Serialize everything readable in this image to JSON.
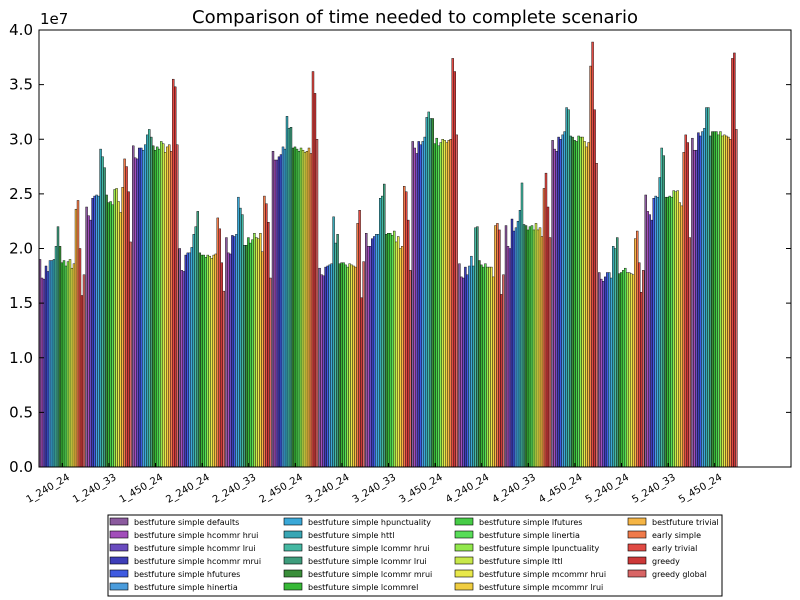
{
  "chart_data": {
    "type": "bar",
    "title": "Comparison of time needed to complete scenario",
    "xlabel": "",
    "ylabel": "",
    "ylim": [
      0,
      40000000
    ],
    "y_offset_label": "1e7",
    "y_ticks": [
      "0.0",
      "0.5",
      "1.0",
      "1.5",
      "2.0",
      "2.5",
      "3.0",
      "3.5",
      "4.0"
    ],
    "grid": false,
    "legend_position": "bottom",
    "categories": [
      "1_240_24",
      "1_240_33",
      "1_450_24",
      "2_240_24",
      "2_240_33",
      "2_450_24",
      "3_240_24",
      "3_240_33",
      "3_450_24",
      "4_240_24",
      "4_240_33",
      "4_450_24",
      "5_240_24",
      "5_240_33",
      "5_450_24"
    ],
    "series": [
      {
        "name": "bestfuture simple defaults",
        "color": "#8b5a9e",
        "values": [
          19000000,
          23800000,
          29400000,
          20000000,
          21000000,
          28900000,
          18200000,
          21400000,
          29800000,
          18600000,
          22100000,
          29900000,
          17800000,
          24900000,
          30100000
        ]
      },
      {
        "name": "bestfuture simple hcommr hrui",
        "color": "#a24dba",
        "values": [
          17300000,
          23000000,
          28300000,
          18000000,
          19600000,
          28100000,
          17600000,
          20200000,
          29200000,
          17400000,
          20200000,
          29100000,
          17200000,
          23400000,
          29000000
        ]
      },
      {
        "name": "bestfuture simple hcommr lrui",
        "color": "#6a4cbf",
        "values": [
          17200000,
          22600000,
          28200000,
          17900000,
          19500000,
          28100000,
          17500000,
          20200000,
          28700000,
          17300000,
          20000000,
          28900000,
          17000000,
          23100000,
          29000000
        ]
      },
      {
        "name": "bestfuture simple hcommr mrui",
        "color": "#3e3eb8",
        "values": [
          18400000,
          24600000,
          29200000,
          19400000,
          21200000,
          28400000,
          18300000,
          20900000,
          29800000,
          18300000,
          22700000,
          30200000,
          17400000,
          22600000,
          30600000
        ]
      },
      {
        "name": "bestfuture simple hfutures",
        "color": "#3f5be0",
        "values": [
          17900000,
          24800000,
          29200000,
          19600000,
          21100000,
          28600000,
          18400000,
          21100000,
          29500000,
          17600000,
          21600000,
          30000000,
          17800000,
          24600000,
          30300000
        ]
      },
      {
        "name": "bestfuture simple hinertia",
        "color": "#4a9cdc",
        "values": [
          18900000,
          24900000,
          29000000,
          19600000,
          21300000,
          29300000,
          18500000,
          21300000,
          29800000,
          18400000,
          21900000,
          30400000,
          17800000,
          24800000,
          30700000
        ]
      },
      {
        "name": "bestfuture simple hpunctuality",
        "color": "#3aa8d8",
        "values": [
          18900000,
          24800000,
          29500000,
          20100000,
          24700000,
          29100000,
          18600000,
          21300000,
          30200000,
          19300000,
          22500000,
          30700000,
          17300000,
          24700000,
          31000000
        ]
      },
      {
        "name": "bestfuture simple httl",
        "color": "#38a6b4",
        "values": [
          19000000,
          29100000,
          30400000,
          21300000,
          23700000,
          32100000,
          22900000,
          24600000,
          32000000,
          18400000,
          23500000,
          32900000,
          20200000,
          26500000,
          32900000
        ]
      },
      {
        "name": "bestfuture simple lcommr hrui",
        "color": "#45b8a2",
        "values": [
          20200000,
          28400000,
          30900000,
          22000000,
          23100000,
          31000000,
          20500000,
          24800000,
          32500000,
          21900000,
          26000000,
          32700000,
          20000000,
          29200000,
          32900000
        ]
      },
      {
        "name": "bestfuture simple lcommr lrui",
        "color": "#3e9c7c",
        "values": [
          22000000,
          27400000,
          30200000,
          23400000,
          20300000,
          31100000,
          21300000,
          25900000,
          31900000,
          22000000,
          22200000,
          30300000,
          21000000,
          28500000,
          30300000
        ]
      },
      {
        "name": "bestfuture simple lcommr mrui",
        "color": "#3a8e3a",
        "values": [
          20200000,
          24900000,
          29400000,
          19600000,
          20300000,
          29200000,
          18600000,
          21300000,
          31900000,
          18900000,
          22100000,
          30200000,
          17700000,
          24700000,
          30700000
        ]
      },
      {
        "name": "bestfuture simple lcommrel",
        "color": "#37b837",
        "values": [
          18700000,
          24200000,
          29000000,
          19400000,
          21000000,
          29300000,
          18700000,
          21400000,
          29600000,
          18500000,
          21700000,
          29900000,
          17800000,
          24700000,
          30700000
        ]
      },
      {
        "name": "bestfuture simple lfutures",
        "color": "#46cc46",
        "values": [
          18900000,
          24300000,
          29300000,
          19400000,
          20500000,
          29100000,
          18700000,
          21400000,
          30100000,
          18300000,
          22000000,
          29800000,
          18000000,
          24800000,
          30700000
        ]
      },
      {
        "name": "bestfuture simple linertia",
        "color": "#58dd58",
        "values": [
          18400000,
          24000000,
          29100000,
          19200000,
          20800000,
          28900000,
          18500000,
          21200000,
          29400000,
          18600000,
          22100000,
          30300000,
          18200000,
          24700000,
          30400000
        ]
      },
      {
        "name": "bestfuture simple lpunctuality",
        "color": "#92e84c",
        "values": [
          18800000,
          25400000,
          29800000,
          19400000,
          21400000,
          29200000,
          18300000,
          21600000,
          29700000,
          18300000,
          21700000,
          30200000,
          17800000,
          25300000,
          30700000
        ]
      },
      {
        "name": "bestfuture simple lttl",
        "color": "#c8e84a",
        "values": [
          19000000,
          25500000,
          29600000,
          19300000,
          21000000,
          29000000,
          18600000,
          20600000,
          30000000,
          18300000,
          22300000,
          30200000,
          17800000,
          25200000,
          30300000
        ]
      },
      {
        "name": "bestfuture simple mcommr hrui",
        "color": "#e8e84a",
        "values": [
          18200000,
          24300000,
          28800000,
          19100000,
          20900000,
          28800000,
          18500000,
          21100000,
          29900000,
          18300000,
          21700000,
          29800000,
          17700000,
          25300000,
          30400000
        ]
      },
      {
        "name": "bestfuture simple mcommr lrui",
        "color": "#f0cd40",
        "values": [
          18600000,
          23300000,
          29300000,
          19400000,
          21400000,
          28900000,
          18400000,
          20000000,
          29700000,
          17400000,
          21900000,
          29300000,
          17600000,
          24200000,
          30300000
        ]
      },
      {
        "name": "bestfuture trivial",
        "color": "#f5b545",
        "values": [
          23600000,
          25600000,
          29500000,
          19500000,
          19700000,
          29200000,
          18300000,
          20200000,
          29900000,
          22100000,
          21100000,
          29700000,
          20900000,
          23900000,
          30200000
        ]
      },
      {
        "name": "early simple",
        "color": "#f07a4a",
        "values": [
          24400000,
          28200000,
          28900000,
          22800000,
          24800000,
          28700000,
          22300000,
          25700000,
          30000000,
          22300000,
          25500000,
          36700000,
          21600000,
          28800000,
          30000000
        ]
      },
      {
        "name": "early trivial",
        "color": "#e04a44",
        "values": [
          20000000,
          27500000,
          35500000,
          21800000,
          24100000,
          36200000,
          23500000,
          25200000,
          37400000,
          21700000,
          26900000,
          38900000,
          18700000,
          30400000,
          37400000
        ]
      },
      {
        "name": "greedy",
        "color": "#cc3838",
        "values": [
          15700000,
          25200000,
          34800000,
          18700000,
          22400000,
          34200000,
          15500000,
          22600000,
          36200000,
          15800000,
          23800000,
          32700000,
          16000000,
          29700000,
          37900000
        ]
      },
      {
        "name": "greedy global",
        "color": "#d86565",
        "values": [
          17600000,
          20600000,
          29500000,
          16100000,
          17300000,
          30000000,
          18800000,
          18000000,
          30400000,
          17600000,
          21000000,
          27800000,
          18000000,
          21000000,
          30900000
        ]
      }
    ]
  }
}
